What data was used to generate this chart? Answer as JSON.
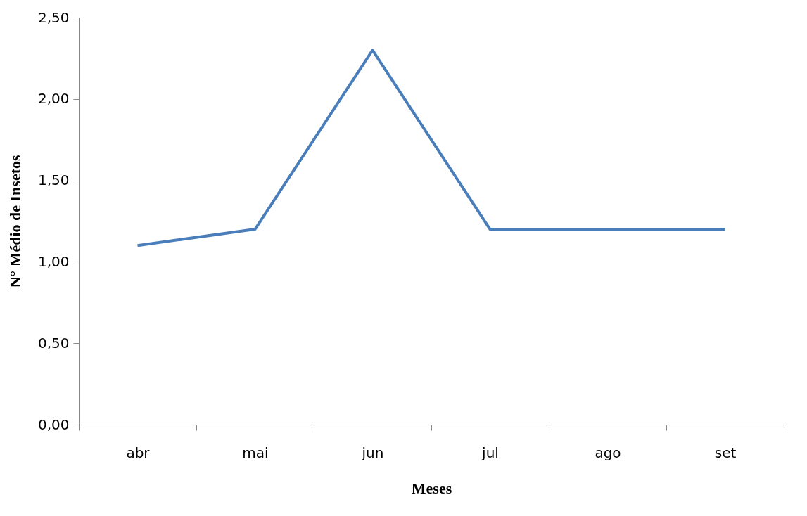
{
  "chart_data": {
    "type": "line",
    "xlabel": "Meses",
    "ylabel": "N° Médio de Insetos",
    "categories": [
      "abr",
      "mai",
      "jun",
      "jul",
      "ago",
      "set"
    ],
    "series": [
      {
        "color": "#4a7ebb",
        "values": [
          1.1,
          1.2,
          2.3,
          1.2,
          1.2,
          1.2
        ]
      }
    ],
    "ylim": [
      0,
      2.5
    ],
    "yticks": [
      {
        "value": 0,
        "label": "0,00"
      },
      {
        "value": 0.5,
        "label": "0,50"
      },
      {
        "value": 1,
        "label": "1,00"
      },
      {
        "value": 1.5,
        "label": "1,50"
      },
      {
        "value": 2,
        "label": "2,00"
      },
      {
        "value": 2.5,
        "label": "2,50"
      }
    ],
    "grid": false,
    "marker": "none",
    "line_style": "solid"
  }
}
